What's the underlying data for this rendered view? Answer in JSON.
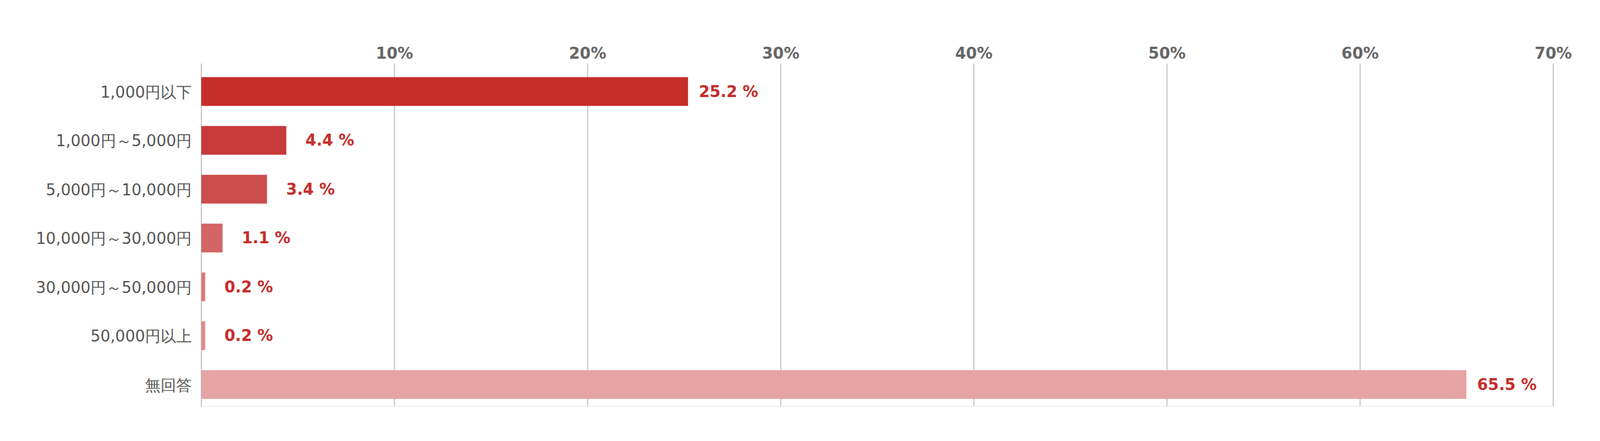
{
  "chart_data": {
    "type": "bar",
    "orientation": "horizontal",
    "categories": [
      "1,000円以下",
      "1,000円～5,000円",
      "5,000円～10,000円",
      "10,000円～30,000円",
      "30,000円～50,000円",
      "50,000円以上",
      "無回答"
    ],
    "values": [
      25.2,
      4.4,
      3.4,
      1.1,
      0.2,
      0.2,
      65.5
    ],
    "value_labels": [
      "25.2 %",
      "4.4 %",
      "3.4 %",
      "1.1 %",
      "0.2 %",
      "0.2 %",
      "65.5 %"
    ],
    "colors": [
      "#c62d2a",
      "#c93a3a",
      "#cd4c4c",
      "#d46466",
      "#d97a7c",
      "#dd8c8e",
      "#e5a3a4"
    ],
    "xlim": [
      0,
      70
    ],
    "xticks": [
      {
        "value": 10,
        "label": "10%"
      },
      {
        "value": 20,
        "label": "20%"
      },
      {
        "value": 30,
        "label": "30%"
      },
      {
        "value": 40,
        "label": "40%"
      },
      {
        "value": 50,
        "label": "50%"
      },
      {
        "value": 60,
        "label": "60%"
      },
      {
        "value": 70,
        "label": "70%"
      }
    ],
    "grid": true,
    "data_labels": true
  }
}
